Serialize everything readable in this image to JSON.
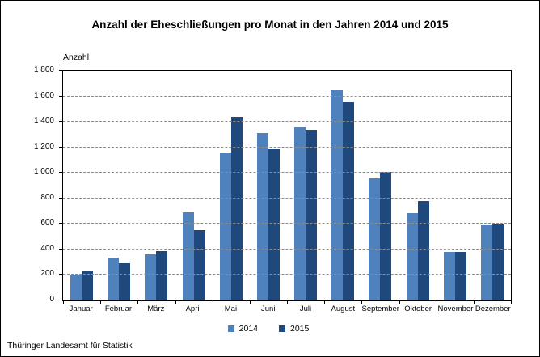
{
  "chart_data": {
    "type": "bar",
    "title": "Anzahl der Eheschließungen pro Monat in den Jahren 2014 und 2015",
    "ylabel": "Anzahl",
    "xlabel": "",
    "ylim": [
      0,
      1800
    ],
    "grid": "horizontal-dashed",
    "legend_position": "bottom",
    "ytick_values": [
      0,
      200,
      400,
      600,
      800,
      1000,
      1200,
      1400,
      1600,
      1800
    ],
    "ytick_labels": [
      "0",
      "200",
      "400",
      "600",
      "800",
      "1 000",
      "1 200",
      "1 400",
      "1 600",
      "1 800"
    ],
    "categories": [
      "Januar",
      "Februar",
      "März",
      "April",
      "Mai",
      "Juni",
      "Juli",
      "August",
      "September",
      "Oktober",
      "November",
      "Dezember"
    ],
    "series": [
      {
        "name": "2014",
        "color": "#4F81BD",
        "values": [
          200,
          335,
          360,
          690,
          1160,
          1315,
          1360,
          1650,
          960,
          685,
          380,
          595
        ]
      },
      {
        "name": "2015",
        "color": "#1F497D",
        "values": [
          230,
          290,
          385,
          550,
          1440,
          1190,
          1340,
          1560,
          1010,
          780,
          380,
          600
        ]
      }
    ]
  },
  "source": "Thüringer Landesamt für Statistik",
  "colors": {
    "series_2014": "#4F81BD",
    "series_2015": "#1F497D",
    "gridline": "#8c8c8c",
    "axis": "#000000"
  }
}
